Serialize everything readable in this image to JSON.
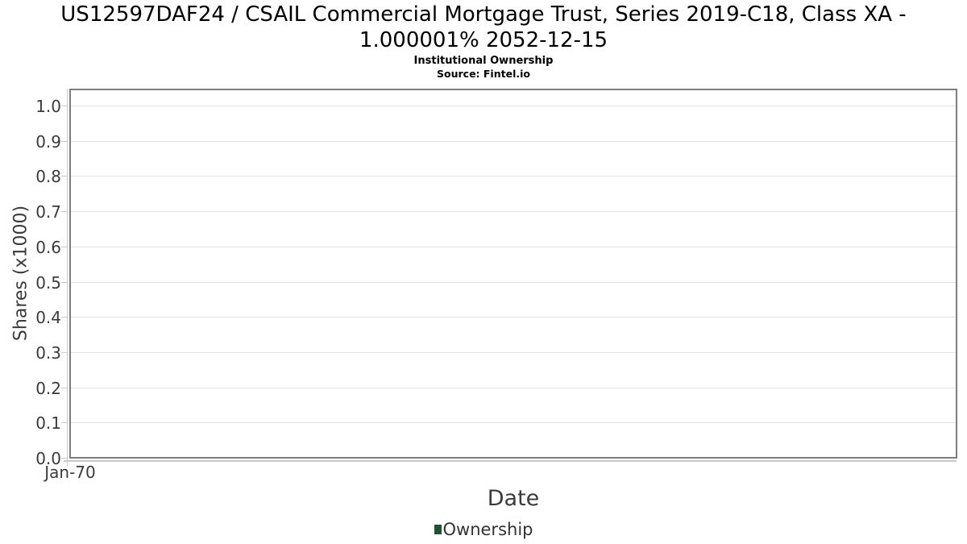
{
  "chart_data": {
    "type": "line",
    "title": "US12597DAF24 / CSAIL Commercial Mortgage Trust, Series 2019-C18, Class XA - 1.000001% 2052-12-15",
    "subtitle": "Institutional Ownership",
    "source": "Source: Fintel.io",
    "xlabel": "Date",
    "ylabel": "Shares (x1000)",
    "x_ticks": [
      "Jan-70"
    ],
    "y_ticks": [
      "0.0",
      "0.1",
      "0.2",
      "0.3",
      "0.4",
      "0.5",
      "0.6",
      "0.7",
      "0.8",
      "0.9",
      "1.0"
    ],
    "ylim": [
      0,
      1.05
    ],
    "grid": true,
    "legend_position": "bottom",
    "series": [
      {
        "name": "Ownership",
        "color": "#1d5331",
        "x": [],
        "values": []
      }
    ]
  },
  "colors": {
    "plot_border": "#7e7e7e",
    "gridline": "#e3e3e3",
    "axis_tick": "#c9c9c9",
    "axis_text": "#3b3b3b",
    "title_text": "#000000",
    "legend_green": "#1d5331"
  }
}
